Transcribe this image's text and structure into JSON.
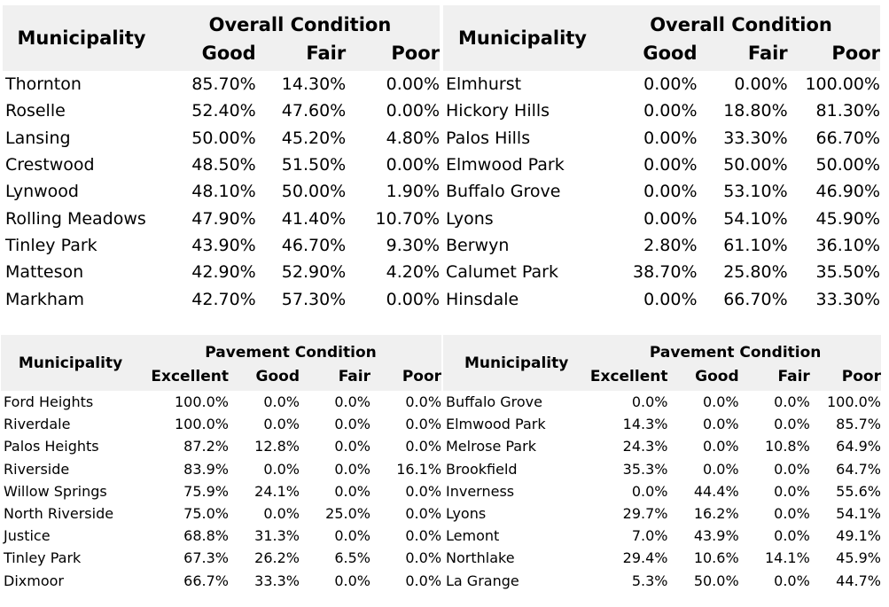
{
  "tables": [
    {
      "municipality_label": "Municipality",
      "group_label": "Overall Condition",
      "columns": [
        "Good",
        "Fair",
        "Poor"
      ],
      "rows": [
        [
          "Thornton",
          "85.70%",
          "14.30%",
          "0.00%"
        ],
        [
          "Roselle",
          "52.40%",
          "47.60%",
          "0.00%"
        ],
        [
          "Lansing",
          "50.00%",
          "45.20%",
          "4.80%"
        ],
        [
          "Crestwood",
          "48.50%",
          "51.50%",
          "0.00%"
        ],
        [
          "Lynwood",
          "48.10%",
          "50.00%",
          "1.90%"
        ],
        [
          "Rolling Meadows",
          "47.90%",
          "41.40%",
          "10.70%"
        ],
        [
          "Tinley Park",
          "43.90%",
          "46.70%",
          "9.30%"
        ],
        [
          "Matteson",
          "42.90%",
          "52.90%",
          "4.20%"
        ],
        [
          "Markham",
          "42.70%",
          "57.30%",
          "0.00%"
        ]
      ]
    },
    {
      "municipality_label": "Municipality",
      "group_label": "Overall Condition",
      "columns": [
        "Good",
        "Fair",
        "Poor"
      ],
      "rows": [
        [
          "Elmhurst",
          "0.00%",
          "0.00%",
          "100.00%"
        ],
        [
          "Hickory Hills",
          "0.00%",
          "18.80%",
          "81.30%"
        ],
        [
          "Palos Hills",
          "0.00%",
          "33.30%",
          "66.70%"
        ],
        [
          "Elmwood Park",
          "0.00%",
          "50.00%",
          "50.00%"
        ],
        [
          "Buffalo Grove",
          "0.00%",
          "53.10%",
          "46.90%"
        ],
        [
          "Lyons",
          "0.00%",
          "54.10%",
          "45.90%"
        ],
        [
          "Berwyn",
          "2.80%",
          "61.10%",
          "36.10%"
        ],
        [
          "Calumet Park",
          "38.70%",
          "25.80%",
          "35.50%"
        ],
        [
          "Hinsdale",
          "0.00%",
          "66.70%",
          "33.30%"
        ]
      ]
    },
    {
      "municipality_label": "Municipality",
      "group_label": "Pavement Condition",
      "columns": [
        "Excellent",
        "Good",
        "Fair",
        "Poor"
      ],
      "rows": [
        [
          "Ford Heights",
          "100.0%",
          "0.0%",
          "0.0%",
          "0.0%"
        ],
        [
          "Riverdale",
          "100.0%",
          "0.0%",
          "0.0%",
          "0.0%"
        ],
        [
          "Palos Heights",
          "87.2%",
          "12.8%",
          "0.0%",
          "0.0%"
        ],
        [
          "Riverside",
          "83.9%",
          "0.0%",
          "0.0%",
          "16.1%"
        ],
        [
          "Willow Springs",
          "75.9%",
          "24.1%",
          "0.0%",
          "0.0%"
        ],
        [
          "North Riverside",
          "75.0%",
          "0.0%",
          "25.0%",
          "0.0%"
        ],
        [
          "Justice",
          "68.8%",
          "31.3%",
          "0.0%",
          "0.0%"
        ],
        [
          "Tinley Park",
          "67.3%",
          "26.2%",
          "6.5%",
          "0.0%"
        ],
        [
          "Dixmoor",
          "66.7%",
          "33.3%",
          "0.0%",
          "0.0%"
        ]
      ]
    },
    {
      "municipality_label": "Municipality",
      "group_label": "Pavement Condition",
      "columns": [
        "Excellent",
        "Good",
        "Fair",
        "Poor"
      ],
      "rows": [
        [
          "Buffalo Grove",
          "0.0%",
          "0.0%",
          "0.0%",
          "100.0%"
        ],
        [
          "Elmwood Park",
          "14.3%",
          "0.0%",
          "0.0%",
          "85.7%"
        ],
        [
          "Melrose Park",
          "24.3%",
          "0.0%",
          "10.8%",
          "64.9%"
        ],
        [
          "Brookfield",
          "35.3%",
          "0.0%",
          "0.0%",
          "64.7%"
        ],
        [
          "Inverness",
          "0.0%",
          "44.4%",
          "0.0%",
          "55.6%"
        ],
        [
          "Lyons",
          "29.7%",
          "16.2%",
          "0.0%",
          "54.1%"
        ],
        [
          "Lemont",
          "7.0%",
          "43.9%",
          "0.0%",
          "49.1%"
        ],
        [
          "Northlake",
          "29.4%",
          "10.6%",
          "14.1%",
          "45.9%"
        ],
        [
          "La Grange",
          "5.3%",
          "50.0%",
          "0.0%",
          "44.7%"
        ]
      ]
    }
  ]
}
